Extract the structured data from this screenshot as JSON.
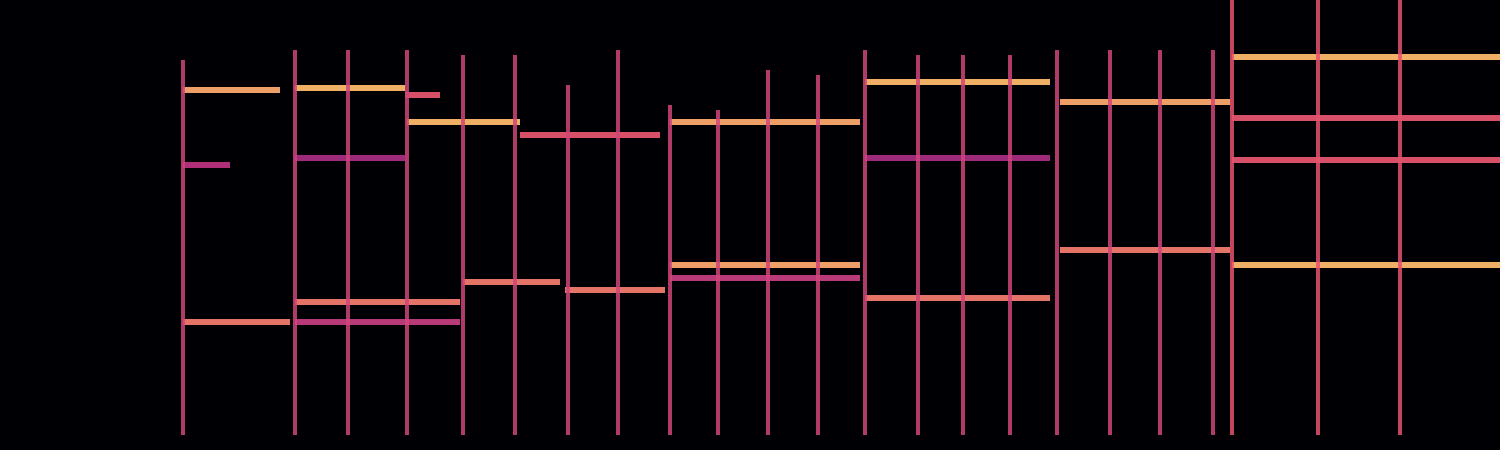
{
  "chart_data": {
    "type": "spectrogram",
    "tick_labels": false,
    "grid": false,
    "xlim": [
      0,
      1500
    ],
    "ylim": [
      0,
      450
    ],
    "series": [
      {
        "color": "#fba86e",
        "x": [
          183,
          280
        ],
        "values": [
          360,
          360
        ]
      },
      {
        "color": "#b8337f",
        "x": [
          183,
          230
        ],
        "values": [
          285,
          285
        ]
      },
      {
        "color": "#f07a6a",
        "x": [
          183,
          290
        ],
        "values": [
          128,
          128
        ]
      },
      {
        "color": "#fcb96a",
        "x": [
          295,
          405
        ],
        "values": [
          362,
          362
        ]
      },
      {
        "color": "#e4536e",
        "x": [
          405,
          440
        ],
        "values": [
          355,
          355
        ]
      },
      {
        "color": "#a52d80",
        "x": [
          295,
          405
        ],
        "values": [
          292,
          292
        ]
      },
      {
        "color": "#f07a6a",
        "x": [
          295,
          460
        ],
        "values": [
          148,
          148
        ]
      },
      {
        "color": "#c23d7e",
        "x": [
          295,
          460
        ],
        "values": [
          128,
          128
        ]
      },
      {
        "color": "#fcb96a",
        "x": [
          407,
          520
        ],
        "values": [
          328,
          328
        ]
      },
      {
        "color": "#e4536e",
        "x": [
          520,
          660
        ],
        "values": [
          315,
          315
        ]
      },
      {
        "color": "#f07a6a",
        "x": [
          463,
          560
        ],
        "values": [
          168,
          168
        ]
      },
      {
        "color": "#f07a6a",
        "x": [
          565,
          665
        ],
        "values": [
          160,
          160
        ]
      },
      {
        "color": "#fba86e",
        "x": [
          670,
          860
        ],
        "values": [
          328,
          328
        ]
      },
      {
        "color": "#fba86e",
        "x": [
          670,
          860
        ],
        "values": [
          185,
          185
        ]
      },
      {
        "color": "#c23d7e",
        "x": [
          670,
          860
        ],
        "values": [
          172,
          172
        ]
      },
      {
        "color": "#fcb96a",
        "x": [
          865,
          1050
        ],
        "values": [
          368,
          368
        ]
      },
      {
        "color": "#a52d80",
        "x": [
          865,
          1050
        ],
        "values": [
          292,
          292
        ]
      },
      {
        "color": "#f07a6a",
        "x": [
          865,
          1050
        ],
        "values": [
          152,
          152
        ]
      },
      {
        "color": "#fba86e",
        "x": [
          1060,
          1230
        ],
        "values": [
          348,
          348
        ]
      },
      {
        "color": "#f07a6a",
        "x": [
          1060,
          1230
        ],
        "values": [
          200,
          200
        ]
      },
      {
        "color": "#fcb96a",
        "x": [
          1232,
          1500
        ],
        "values": [
          393,
          393
        ]
      },
      {
        "color": "#e4536e",
        "x": [
          1232,
          1500
        ],
        "values": [
          332,
          332
        ]
      },
      {
        "color": "#e4536e",
        "x": [
          1232,
          1500
        ],
        "values": [
          290,
          290
        ]
      },
      {
        "color": "#fcb96a",
        "x": [
          1232,
          1500
        ],
        "values": [
          185,
          185
        ]
      },
      {
        "color": "#d0457a",
        "x": [
          183,
          183
        ],
        "values": [
          15,
          390
        ]
      },
      {
        "color": "#d0457a",
        "x": [
          295,
          295
        ],
        "values": [
          15,
          400
        ]
      },
      {
        "color": "#d0457a",
        "x": [
          348,
          348
        ],
        "values": [
          15,
          400
        ]
      },
      {
        "color": "#d0457a",
        "x": [
          407,
          407
        ],
        "values": [
          15,
          400
        ]
      },
      {
        "color": "#d0457a",
        "x": [
          463,
          463
        ],
        "values": [
          15,
          395
        ]
      },
      {
        "color": "#d0457a",
        "x": [
          515,
          515
        ],
        "values": [
          15,
          395
        ]
      },
      {
        "color": "#d0457a",
        "x": [
          568,
          568
        ],
        "values": [
          15,
          365
        ]
      },
      {
        "color": "#d0457a",
        "x": [
          618,
          618
        ],
        "values": [
          15,
          400
        ]
      },
      {
        "color": "#d0457a",
        "x": [
          670,
          670
        ],
        "values": [
          15,
          345
        ]
      },
      {
        "color": "#d0457a",
        "x": [
          718,
          718
        ],
        "values": [
          15,
          340
        ]
      },
      {
        "color": "#d0457a",
        "x": [
          768,
          768
        ],
        "values": [
          15,
          380
        ]
      },
      {
        "color": "#d0457a",
        "x": [
          818,
          818
        ],
        "values": [
          15,
          375
        ]
      },
      {
        "color": "#d0457a",
        "x": [
          865,
          865
        ],
        "values": [
          15,
          400
        ]
      },
      {
        "color": "#d0457a",
        "x": [
          918,
          918
        ],
        "values": [
          15,
          395
        ]
      },
      {
        "color": "#d0457a",
        "x": [
          963,
          963
        ],
        "values": [
          15,
          395
        ]
      },
      {
        "color": "#d0457a",
        "x": [
          1010,
          1010
        ],
        "values": [
          15,
          395
        ]
      },
      {
        "color": "#d0457a",
        "x": [
          1057,
          1057
        ],
        "values": [
          15,
          400
        ]
      },
      {
        "color": "#d0457a",
        "x": [
          1110,
          1110
        ],
        "values": [
          15,
          400
        ]
      },
      {
        "color": "#d0457a",
        "x": [
          1160,
          1160
        ],
        "values": [
          15,
          400
        ]
      },
      {
        "color": "#d0457a",
        "x": [
          1213,
          1213
        ],
        "values": [
          15,
          400
        ]
      },
      {
        "color": "#e4536e",
        "x": [
          1232,
          1232
        ],
        "values": [
          15,
          450
        ]
      },
      {
        "color": "#e4536e",
        "x": [
          1318,
          1318
        ],
        "values": [
          15,
          450
        ]
      },
      {
        "color": "#e4536e",
        "x": [
          1400,
          1400
        ],
        "values": [
          15,
          450
        ]
      }
    ]
  }
}
